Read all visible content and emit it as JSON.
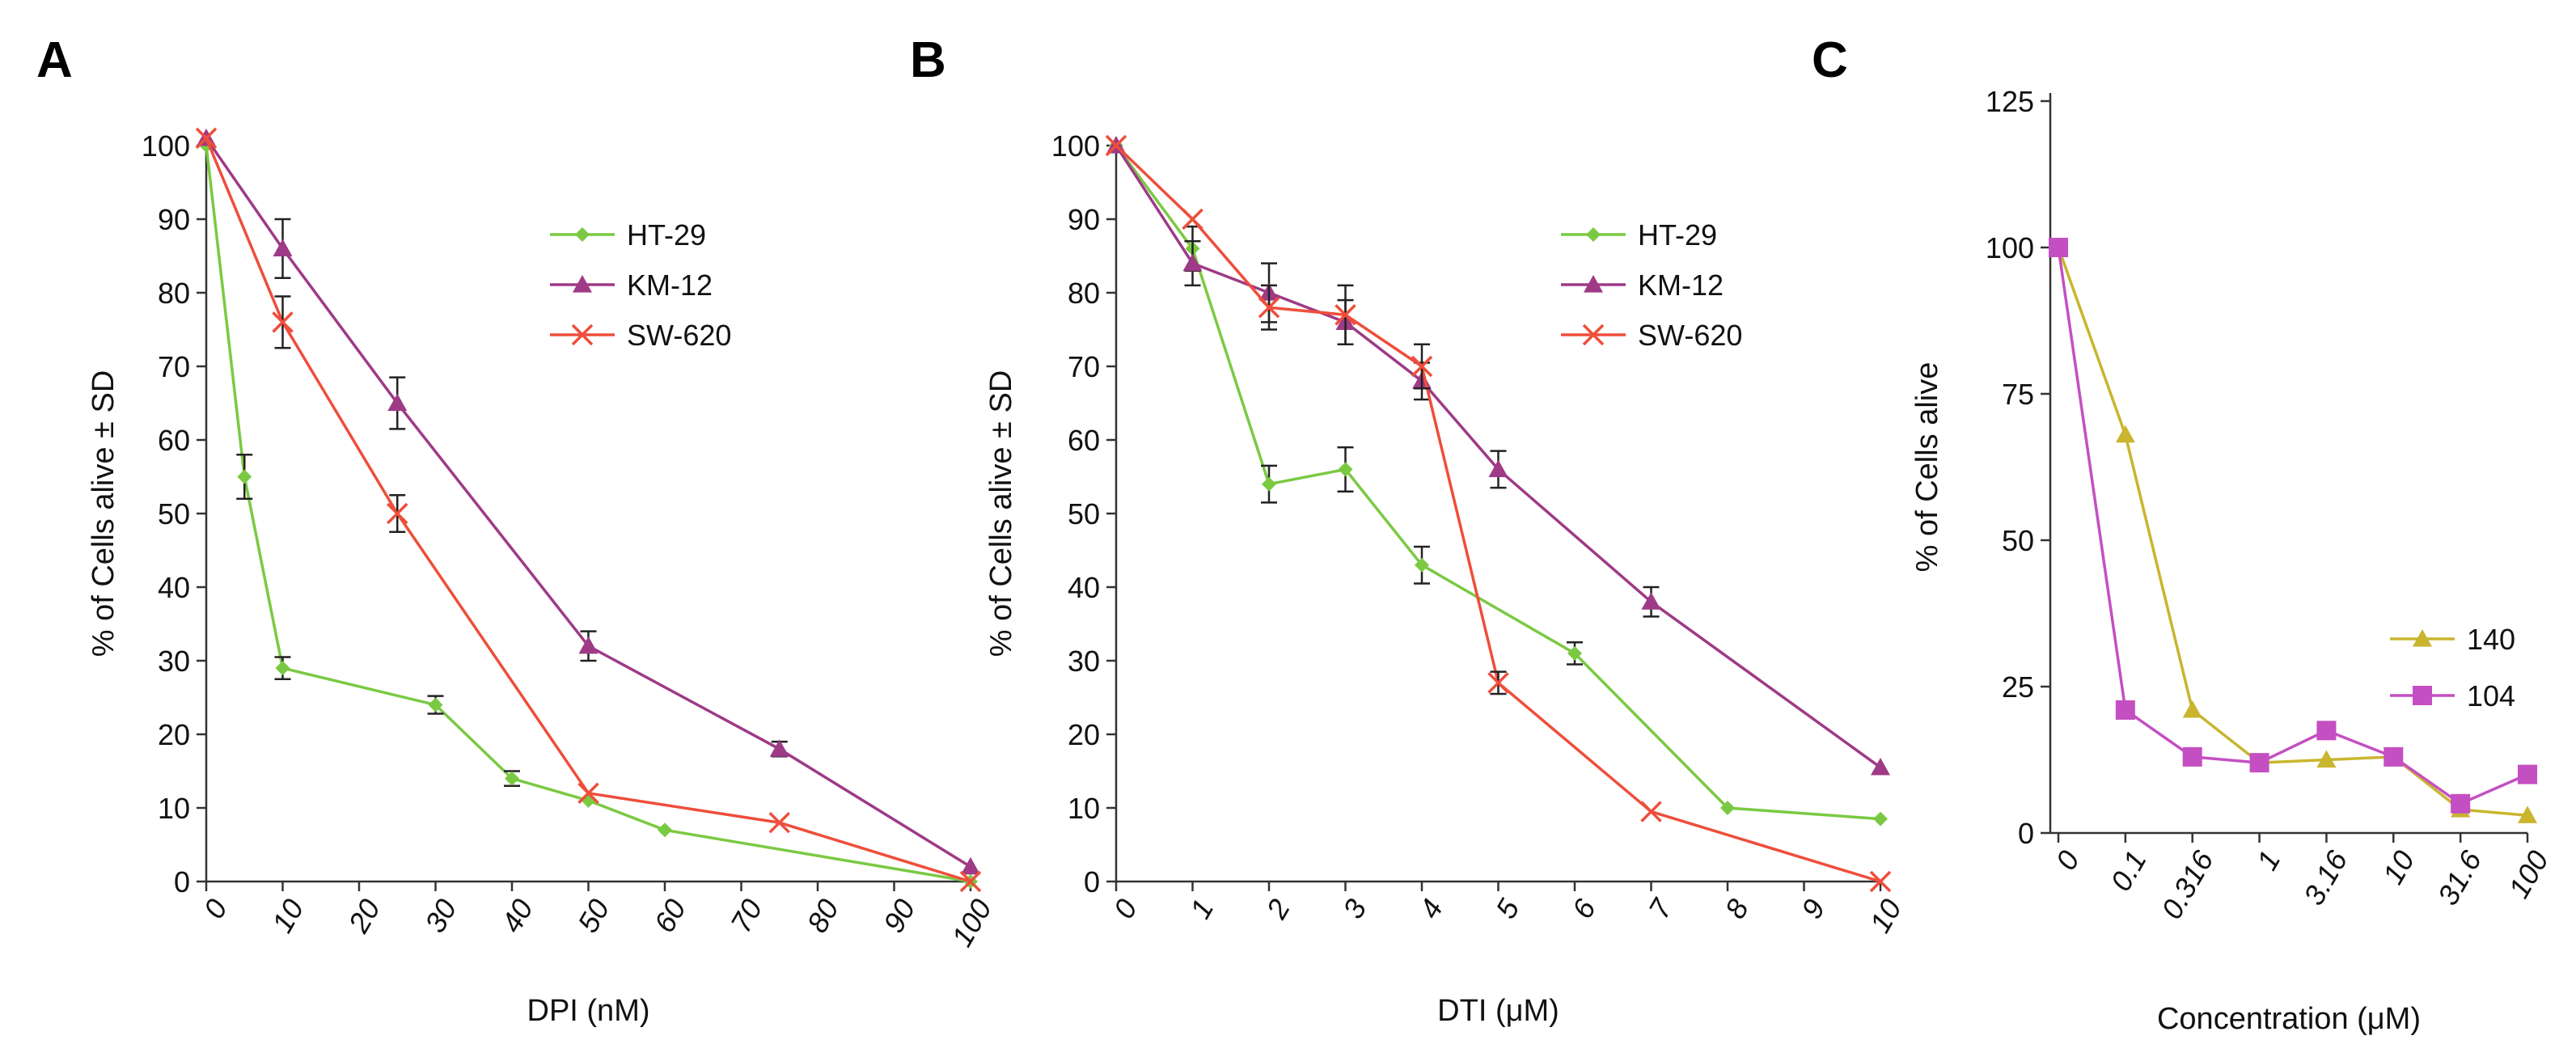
{
  "chart_data": [
    {
      "panel": "A",
      "type": "line",
      "xlabel": "DPI (nM)",
      "ylabel": "% of Cells alive ± SD",
      "xlim": [
        0,
        100
      ],
      "ylim": [
        0,
        100
      ],
      "xticks": [
        0,
        10,
        20,
        30,
        40,
        50,
        60,
        70,
        80,
        90,
        100
      ],
      "yticks": [
        0,
        10,
        20,
        30,
        40,
        50,
        60,
        70,
        80,
        90,
        100
      ],
      "legend_position": "upper-middle",
      "series": [
        {
          "name": "HT-29",
          "color": "#7ac943",
          "marker": "diamond",
          "x": [
            0,
            5,
            10,
            30,
            40,
            50,
            60,
            100
          ],
          "y": [
            100,
            55,
            29,
            24,
            14,
            11,
            7,
            0
          ],
          "err": [
            0,
            3,
            1.5,
            1.2,
            1,
            0,
            0,
            0
          ]
        },
        {
          "name": "KM-12",
          "color": "#9e3a86",
          "marker": "triangle",
          "x": [
            0,
            10,
            25,
            50,
            75,
            100
          ],
          "y": [
            101,
            86,
            65,
            32,
            18,
            2
          ],
          "err": [
            0,
            4,
            3.5,
            2,
            1,
            0
          ]
        },
        {
          "name": "SW-620",
          "color": "#ee4e3b",
          "marker": "cross",
          "x": [
            0,
            10,
            25,
            50,
            75,
            100
          ],
          "y": [
            101,
            76,
            50,
            12,
            8,
            0
          ],
          "err": [
            0,
            3.5,
            2.5,
            0,
            0,
            0
          ]
        }
      ]
    },
    {
      "panel": "B",
      "type": "line",
      "xlabel": "DTI (μM)",
      "ylabel": "% of Cells alive ± SD",
      "xlim": [
        0,
        10
      ],
      "ylim": [
        0,
        100
      ],
      "xticks": [
        0,
        1,
        2,
        3,
        4,
        5,
        6,
        7,
        8,
        9,
        10
      ],
      "yticks": [
        0,
        10,
        20,
        30,
        40,
        50,
        60,
        70,
        80,
        90,
        100
      ],
      "legend_position": "upper-right",
      "series": [
        {
          "name": "HT-29",
          "color": "#7ac943",
          "marker": "diamond",
          "x": [
            0,
            1,
            2,
            3,
            4,
            6,
            8,
            10
          ],
          "y": [
            100,
            86,
            54,
            56,
            43,
            31,
            10,
            8.5
          ],
          "err": [
            0,
            3,
            2.5,
            3,
            2.5,
            1.5,
            0,
            0
          ]
        },
        {
          "name": "KM-12",
          "color": "#9e3a86",
          "marker": "triangle",
          "x": [
            0,
            1,
            2,
            3,
            4,
            5,
            7,
            10
          ],
          "y": [
            100,
            84,
            80,
            76,
            68,
            56,
            38,
            15.5
          ],
          "err": [
            0,
            3,
            4,
            3,
            2.5,
            2.5,
            2,
            0
          ]
        },
        {
          "name": "SW-620",
          "color": "#ee4e3b",
          "marker": "cross",
          "x": [
            0,
            1,
            2,
            3,
            4,
            5,
            7,
            10
          ],
          "y": [
            100,
            90,
            78,
            77,
            70,
            27,
            9.5,
            0
          ],
          "err": [
            0,
            0,
            3,
            4,
            3,
            1.5,
            0,
            0
          ]
        }
      ]
    },
    {
      "panel": "C",
      "type": "line",
      "xlabel": "Concentration (μM)",
      "ylabel": "% of Cells alive",
      "x_scale": "categorical",
      "categories": [
        "0",
        "0.1",
        "0.316",
        "1",
        "3.16",
        "10",
        "31.6",
        "100"
      ],
      "ylim": [
        0,
        125
      ],
      "yticks": [
        0,
        25,
        50,
        75,
        100,
        125
      ],
      "legend_position": "right-middle",
      "series": [
        {
          "name": "140",
          "color": "#c9b52e",
          "marker": "triangle",
          "y": [
            100,
            68,
            21,
            12,
            12.5,
            13,
            4,
            3
          ]
        },
        {
          "name": "104",
          "color": "#c44fc2",
          "marker": "square",
          "y": [
            100,
            21,
            13,
            12,
            17.5,
            13,
            5,
            10
          ]
        }
      ]
    }
  ],
  "panel_letters": [
    "A",
    "B",
    "C"
  ]
}
